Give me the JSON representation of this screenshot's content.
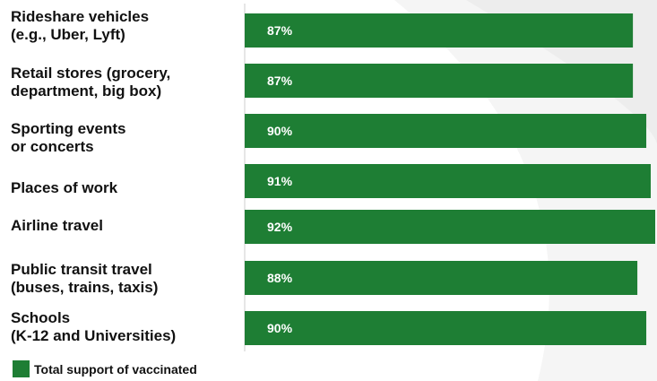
{
  "chart_data": {
    "type": "bar",
    "orientation": "horizontal",
    "categories": [
      "Rideshare vehicles\n(e.g., Uber, Lyft)",
      "Retail stores (grocery,\ndepartment, big box)",
      "Sporting events\nor concerts",
      "Places of work",
      "Airline travel",
      "Public transit travel\n(buses, trains, taxis)",
      "Schools\n(K-12 and Universities)"
    ],
    "series": [
      {
        "name": "Total support of vaccinated",
        "values": [
          87,
          87,
          90,
          91,
          92,
          88,
          90
        ],
        "color": "#1e7e34"
      }
    ],
    "value_suffix": "%",
    "legend_position": "bottom-left",
    "grid": false
  },
  "colors": {
    "bar": "#1e7e34",
    "background": "#ffffff",
    "background_shape": "#f4f4f4",
    "axis": "#cccccc"
  }
}
